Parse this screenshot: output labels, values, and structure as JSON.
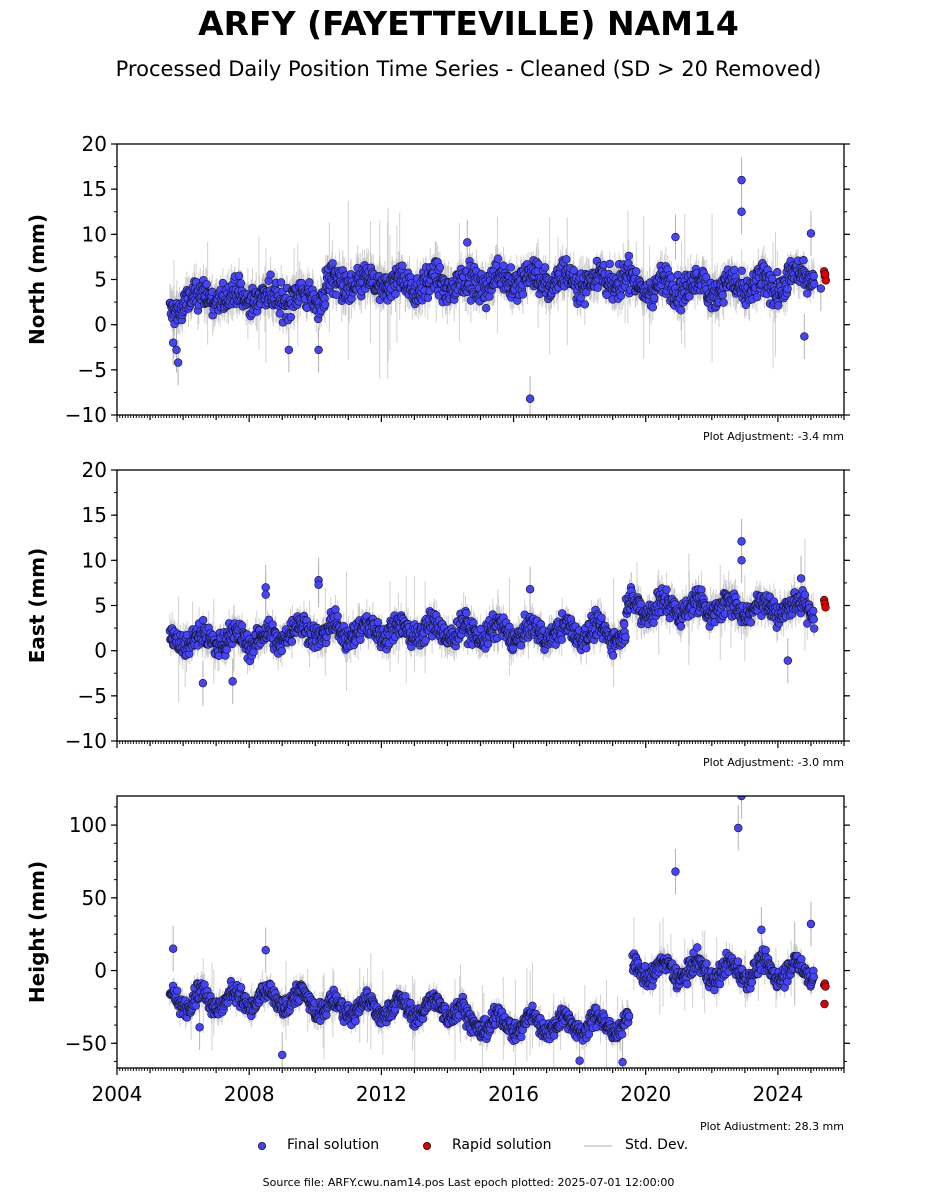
{
  "title": "ARFY (FAYETTEVILLE) NAM14",
  "subtitle": "Processed Daily Position Time Series - Cleaned (SD > 20 Removed)",
  "source_note": "Source file: ARFY.cwu.nam14.pos  Last epoch plotted: 2025-07-01 12:00:00",
  "legend": {
    "final_label": "Final solution",
    "rapid_label": "Rapid solution",
    "std_label": "Std. Dev.",
    "placement": "bottom-center"
  },
  "colors": {
    "final": "#4444ff",
    "rapid": "#e00000",
    "std": "#b4b4b4",
    "marker_edge": "#111111"
  },
  "chart_data": [
    {
      "type": "scatter",
      "name": "north",
      "ylabel": "North (mm)",
      "ylim": [
        -10,
        20
      ],
      "yticks": [
        "20",
        "15",
        "10",
        "5",
        "0",
        "−10"
      ],
      "ytick_values": [
        20,
        15,
        10,
        5,
        0,
        -10
      ],
      "ytick_minus5": "−5",
      "xlim": [
        2004,
        2026
      ],
      "adjustment": "Plot Adjustment: -3.4 mm",
      "segments": [
        {
          "x0": 2005.6,
          "x1": 2006.0,
          "level": 1.5,
          "amp": 0.0,
          "spread": 1.6
        },
        {
          "x0": 2006.0,
          "x1": 2010.3,
          "level": 3.0,
          "amp": 0.6,
          "spread": 1.5
        },
        {
          "x0": 2010.3,
          "x1": 2015.4,
          "level": 4.5,
          "amp": 0.7,
          "spread": 1.6
        },
        {
          "x0": 2015.4,
          "x1": 2019.6,
          "level": 5.0,
          "amp": 0.8,
          "spread": 1.5
        },
        {
          "x0": 2019.6,
          "x1": 2024.3,
          "level": 4.2,
          "amp": 0.8,
          "spread": 1.5
        },
        {
          "x0": 2024.3,
          "x1": 2025.1,
          "level": 5.5,
          "amp": 0.5,
          "spread": 1.3
        }
      ],
      "outliers": [
        [
          2005.7,
          -2.0
        ],
        [
          2005.8,
          -2.8
        ],
        [
          2005.85,
          -4.2
        ],
        [
          2009.2,
          -2.8
        ],
        [
          2010.1,
          -2.8
        ],
        [
          2016.5,
          -8.2
        ],
        [
          2022.9,
          16.0
        ],
        [
          2022.9,
          12.5
        ],
        [
          2020.9,
          9.7
        ],
        [
          2024.8,
          -1.3
        ],
        [
          2025.0,
          10.1
        ],
        [
          2025.3,
          4.0
        ],
        [
          2014.6,
          9.1
        ]
      ],
      "rapid": [
        [
          2025.4,
          5.9
        ],
        [
          2025.42,
          5.4
        ],
        [
          2025.45,
          4.9
        ],
        [
          2025.43,
          5.6
        ]
      ]
    },
    {
      "type": "scatter",
      "name": "east",
      "ylabel": "East (mm)",
      "ylim": [
        -10,
        20
      ],
      "yticks": [
        "20",
        "15",
        "10",
        "5",
        "0",
        "−10"
      ],
      "ytick_values": [
        20,
        15,
        10,
        5,
        0,
        -10
      ],
      "ytick_minus5": "−5",
      "xlim": [
        2004,
        2026
      ],
      "adjustment": "Plot Adjustment: -3.0 mm",
      "segments": [
        {
          "x0": 2005.6,
          "x1": 2009.0,
          "level": 1.3,
          "amp": 0.8,
          "spread": 1.2
        },
        {
          "x0": 2009.0,
          "x1": 2014.0,
          "level": 2.2,
          "amp": 0.8,
          "spread": 1.2
        },
        {
          "x0": 2014.0,
          "x1": 2019.4,
          "level": 2.0,
          "amp": 0.8,
          "spread": 1.2
        },
        {
          "x0": 2019.4,
          "x1": 2025.1,
          "level": 4.8,
          "amp": 0.8,
          "spread": 1.3
        }
      ],
      "outliers": [
        [
          2006.6,
          -3.6
        ],
        [
          2007.5,
          -3.4
        ],
        [
          2008.5,
          7.0
        ],
        [
          2008.5,
          6.2
        ],
        [
          2010.1,
          7.8
        ],
        [
          2010.1,
          7.3
        ],
        [
          2016.5,
          6.8
        ],
        [
          2022.9,
          12.1
        ],
        [
          2022.9,
          10.0
        ],
        [
          2024.3,
          -1.1
        ],
        [
          2024.7,
          8.0
        ]
      ],
      "rapid": [
        [
          2025.4,
          5.6
        ],
        [
          2025.42,
          5.2
        ],
        [
          2025.44,
          4.8
        ]
      ]
    },
    {
      "type": "scatter",
      "name": "height",
      "ylabel": "Height (mm)",
      "ylim": [
        -67,
        120
      ],
      "yticks": [
        "100",
        "50",
        "0",
        "−50"
      ],
      "ytick_values": [
        100,
        50,
        0,
        -50
      ],
      "xlim": [
        2004,
        2026
      ],
      "xticks": [
        "2004",
        "2008",
        "2012",
        "2016",
        "2020",
        "2024"
      ],
      "xtick_values": [
        2004,
        2008,
        2012,
        2016,
        2020,
        2024
      ],
      "adjustment": "Plot Adjustment: 28.3 mm",
      "segments": [
        {
          "x0": 2005.6,
          "x1": 2010.0,
          "level": -20,
          "amp": 6,
          "spread": 6
        },
        {
          "x0": 2010.0,
          "x1": 2014.5,
          "level": -26,
          "amp": 6,
          "spread": 6
        },
        {
          "x0": 2014.5,
          "x1": 2019.5,
          "level": -37,
          "amp": 6,
          "spread": 6
        },
        {
          "x0": 2019.6,
          "x1": 2025.1,
          "level": 0,
          "amp": 6,
          "spread": 6
        }
      ],
      "outliers": [
        [
          2005.7,
          15.0
        ],
        [
          2006.5,
          -39.0
        ],
        [
          2008.5,
          14.0
        ],
        [
          2009.0,
          -58.0
        ],
        [
          2018.0,
          -62.0
        ],
        [
          2019.3,
          -63.0
        ],
        [
          2020.9,
          68.0
        ],
        [
          2022.8,
          98.0
        ],
        [
          2022.9,
          120.0
        ],
        [
          2025.0,
          32.0
        ],
        [
          2023.5,
          28.0
        ]
      ],
      "rapid": [
        [
          2025.4,
          -10.0
        ],
        [
          2025.42,
          -9.0
        ],
        [
          2025.41,
          -23.0
        ],
        [
          2025.44,
          -11.0
        ]
      ]
    }
  ]
}
